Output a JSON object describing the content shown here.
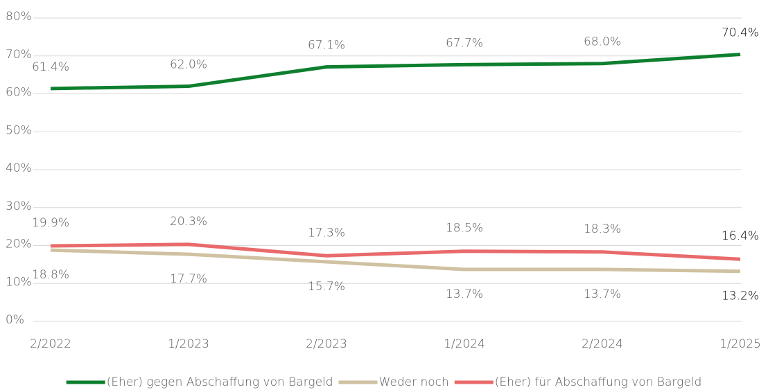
{
  "chart_data": {
    "type": "line",
    "categories": [
      "2/2022",
      "1/2023",
      "2/2023",
      "1/2024",
      "2/2024",
      "1/2025"
    ],
    "series": [
      {
        "name": "(Eher) gegen Abschaffung von Bargeld",
        "color": "#0e7f2e",
        "values": [
          61.4,
          62.0,
          67.1,
          67.7,
          68.0,
          70.4
        ],
        "value_labels": [
          "61.4%",
          "62.0%",
          "67.1%",
          "67.7%",
          "68.0%",
          "70.4%"
        ]
      },
      {
        "name": "Weder noch",
        "color": "#cfc1a1",
        "values": [
          18.8,
          17.7,
          15.7,
          13.7,
          13.7,
          13.2
        ],
        "value_labels": [
          "18.8%",
          "17.7%",
          "15.7%",
          "13.7%",
          "13.7%",
          "13.2%"
        ]
      },
      {
        "name": "(Eher) für Abschaffung von Bargeld",
        "color": "#e96a6b",
        "values": [
          19.9,
          20.3,
          17.3,
          18.5,
          18.3,
          16.4
        ],
        "value_labels": [
          "19.9%",
          "20.3%",
          "17.3%",
          "18.5%",
          "18.3%",
          "16.4%"
        ]
      }
    ],
    "ylim": [
      0,
      80
    ],
    "yticks": [
      {
        "value": 0,
        "label": "0%"
      },
      {
        "value": 10,
        "label": "10%"
      },
      {
        "value": 20,
        "label": "20%"
      },
      {
        "value": 30,
        "label": "30%"
      },
      {
        "value": 40,
        "label": "40%"
      },
      {
        "value": 50,
        "label": "50%"
      },
      {
        "value": 60,
        "label": "60%"
      },
      {
        "value": 70,
        "label": "70%"
      },
      {
        "value": 80,
        "label": "80%"
      }
    ],
    "grid": true,
    "legend": "bottom"
  }
}
